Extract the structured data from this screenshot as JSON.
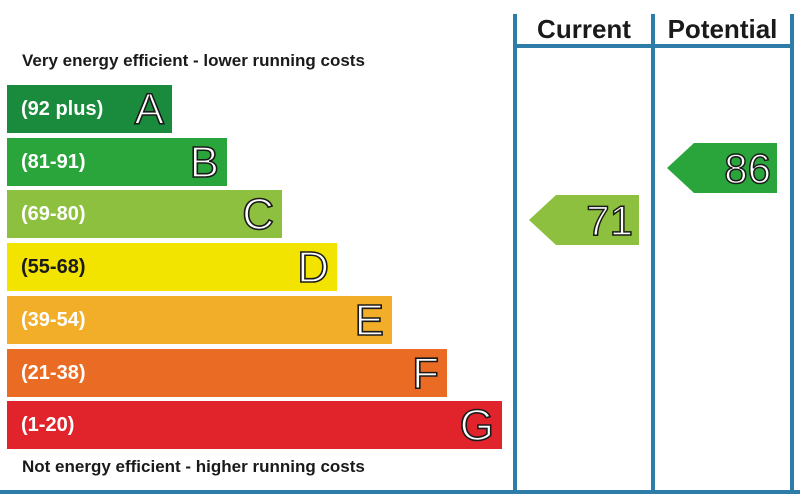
{
  "chart_data": {
    "type": "bar",
    "title": "",
    "top_caption": "Very energy efficient - lower running costs",
    "bottom_caption": "Not energy efficient - higher running costs",
    "columns": [
      "Current",
      "Potential"
    ],
    "bands": [
      {
        "letter": "A",
        "range": "(92 plus)",
        "color": "#1a8a3c"
      },
      {
        "letter": "B",
        "range": "(81-91)",
        "color": "#2aa53c"
      },
      {
        "letter": "C",
        "range": "(69-80)",
        "color": "#8dc03f"
      },
      {
        "letter": "D",
        "range": "(55-68)",
        "color": "#f3e400"
      },
      {
        "letter": "E",
        "range": "(39-54)",
        "color": "#f2ae28"
      },
      {
        "letter": "F",
        "range": "(21-38)",
        "color": "#ea6b24"
      },
      {
        "letter": "G",
        "range": "(1-20)",
        "color": "#e1232b"
      }
    ],
    "current": {
      "value": "71",
      "band": "C",
      "color": "#8dc03f"
    },
    "potential": {
      "value": "86",
      "band": "B",
      "color": "#2aa53c"
    }
  }
}
